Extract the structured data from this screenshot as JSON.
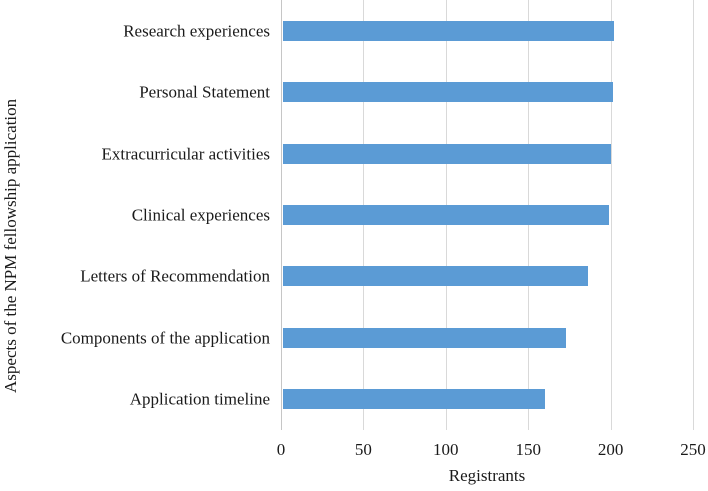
{
  "chart_data": {
    "type": "bar",
    "orientation": "horizontal",
    "title": "",
    "xlabel": "Registrants",
    "ylabel": "Aspects of the NPM fellowship application",
    "categories": [
      "Research experiences",
      "Personal Statement",
      "Extracurricular activities",
      "Clinical experiences",
      "Letters of Recommendation",
      "Components of the application",
      "Application timeline"
    ],
    "values": [
      201,
      200,
      199,
      198,
      185,
      172,
      159
    ],
    "xlim": [
      0,
      250
    ],
    "xticks": [
      0,
      50,
      100,
      150,
      200,
      250
    ],
    "grid": "vertical-on",
    "legend": "none",
    "bar_color": "#5B9BD5",
    "gridline_color": "#D9D9D9",
    "axis_line_color": "#C6C6C6",
    "text_color": "#1a1a1a"
  }
}
